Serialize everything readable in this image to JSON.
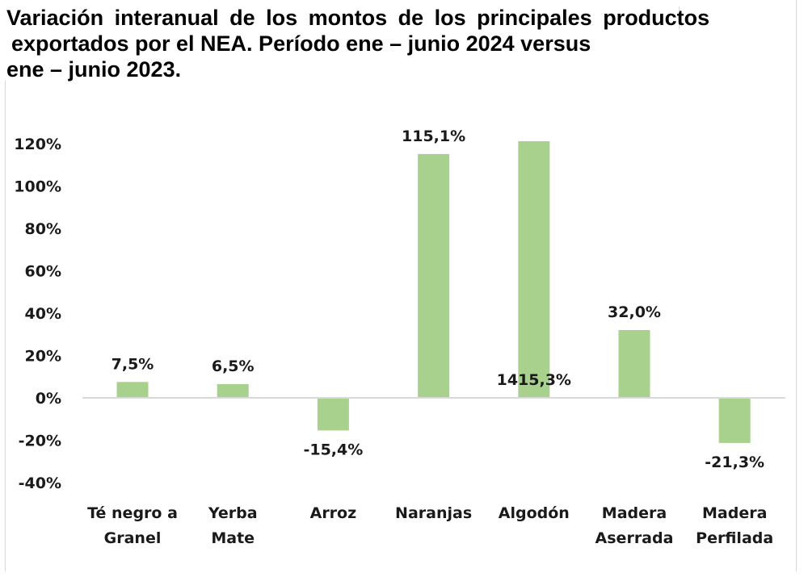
{
  "chart_data": {
    "type": "bar",
    "title_lines": [
      "Variación interanual de los montos de los principales productos",
      "exportados por el NEA. Período ene – junio 2024 versus",
      "ene – junio 2023."
    ],
    "xlabel": "",
    "ylabel": "",
    "ylim": [
      -40,
      120
    ],
    "yticks": [
      120,
      100,
      80,
      60,
      40,
      20,
      0,
      -20,
      -40
    ],
    "ytick_labels": [
      "120%",
      "100%",
      "80%",
      "60%",
      "40%",
      "20%",
      "0%",
      "-20%",
      "-40%"
    ],
    "grid": false,
    "categories": [
      [
        "Té negro a",
        "Granel"
      ],
      [
        "Yerba",
        "Mate"
      ],
      [
        "Arroz"
      ],
      [
        "Naranjas"
      ],
      [
        "Algodón"
      ],
      [
        "Madera",
        "Aserrada"
      ],
      [
        "Madera",
        "Perfilada"
      ]
    ],
    "values": [
      7.5,
      6.5,
      -15.4,
      115.1,
      1415.3,
      32.0,
      -21.3
    ],
    "data_labels": [
      "7,5%",
      "6,5%",
      "-15,4%",
      "115,1%",
      "1415,3%",
      "32,0%",
      "-21,3%"
    ],
    "bar_color": "#a9d18e",
    "axis_color": "#d9d9d9"
  }
}
